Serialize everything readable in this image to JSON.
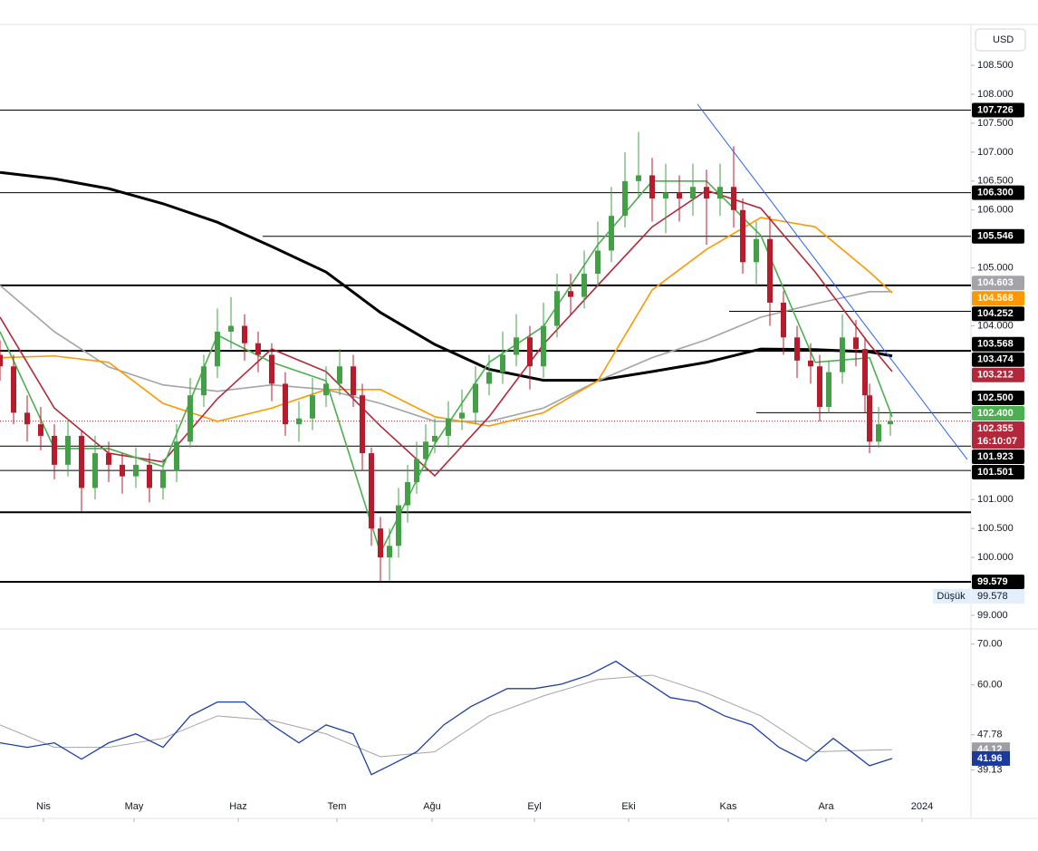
{
  "chart_data": {
    "type": "candlestick",
    "currency": "USD",
    "xlim": [
      0,
      214.4
    ],
    "xticks": [
      {
        "value": 9.6,
        "label": "Nis"
      },
      {
        "value": 29.6,
        "label": "May"
      },
      {
        "value": 52.6,
        "label": "Haz"
      },
      {
        "value": 74.4,
        "label": "Tem"
      },
      {
        "value": 95.4,
        "label": "Ağu"
      },
      {
        "value": 118,
        "label": "Eyl"
      },
      {
        "value": 138.8,
        "label": "Eki"
      },
      {
        "value": 160.8,
        "label": "Kas"
      },
      {
        "value": 182.4,
        "label": "Ara"
      },
      {
        "value": 203.6,
        "label": "2024"
      }
    ],
    "ylim": [
      98.78,
      109.19
    ],
    "yticks": [
      {
        "value": 108.5,
        "label": "108.500"
      },
      {
        "value": 108,
        "label": "108.000"
      },
      {
        "value": 107.5,
        "label": "107.500"
      },
      {
        "value": 107,
        "label": "107.000"
      },
      {
        "value": 106.5,
        "label": "106.500"
      },
      {
        "value": 106,
        "label": "106.000"
      },
      {
        "value": 105,
        "label": "105.000"
      },
      {
        "value": 104,
        "label": "104.000"
      },
      {
        "value": 101,
        "label": "101.000"
      },
      {
        "value": 100.5,
        "label": "100.500"
      },
      {
        "value": 100,
        "label": "100.000"
      },
      {
        "value": 99,
        "label": "99.000"
      }
    ],
    "up_color": "#43a047",
    "down_color": "#b71c2c",
    "candles": {
      "x": [
        0,
        3,
        6,
        9,
        12,
        15,
        18,
        21,
        24,
        27,
        30,
        33,
        36,
        39,
        42,
        45,
        48,
        51,
        54,
        57,
        60,
        63,
        66,
        69,
        72,
        75,
        78,
        80,
        82,
        84,
        86,
        88,
        90,
        92,
        94,
        96,
        99,
        102,
        105,
        108,
        111,
        114,
        117,
        120,
        123,
        126,
        129,
        132,
        135,
        138,
        141,
        144,
        147,
        150,
        153,
        156,
        159,
        162,
        164,
        167,
        170,
        173,
        176,
        179,
        181,
        183,
        186,
        189,
        191,
        192,
        194,
        196.6
      ],
      "open": [
        103.5,
        103.3,
        102.5,
        102.3,
        102.1,
        101.6,
        102.1,
        101.2,
        101.8,
        101.6,
        101.4,
        101.6,
        101.2,
        101.5,
        102.0,
        102.8,
        103.3,
        103.9,
        104.0,
        103.7,
        103.5,
        103.0,
        102.3,
        102.4,
        102.8,
        103.0,
        103.3,
        102.8,
        101.8,
        100.5,
        100.0,
        100.2,
        100.9,
        101.3,
        101.7,
        102.0,
        102.1,
        102.4,
        102.5,
        103.0,
        103.2,
        103.5,
        103.8,
        103.3,
        104.0,
        104.6,
        104.5,
        104.9,
        105.3,
        105.9,
        106.5,
        106.6,
        106.2,
        106.3,
        106.2,
        106.4,
        106.2,
        106.4,
        106.0,
        105.1,
        105.5,
        104.4,
        103.8,
        103.4,
        103.3,
        102.6,
        103.2,
        103.8,
        103.6,
        102.8,
        102.0,
        102.3
      ],
      "high": [
        103.75,
        103.5,
        102.8,
        102.6,
        102.3,
        102.4,
        102.2,
        102.1,
        102.0,
        101.8,
        101.9,
        101.8,
        101.7,
        102.3,
        103.1,
        103.5,
        104.3,
        104.5,
        104.2,
        103.9,
        103.7,
        103.2,
        102.7,
        103.1,
        103.3,
        103.6,
        103.5,
        103.0,
        101.9,
        100.7,
        100.5,
        101.2,
        101.6,
        102.0,
        102.3,
        102.4,
        102.7,
        102.9,
        103.3,
        103.5,
        103.9,
        104.2,
        104.0,
        104.4,
        104.9,
        104.9,
        105.3,
        105.8,
        106.4,
        107.0,
        107.35,
        106.9,
        106.8,
        106.6,
        106.8,
        106.7,
        106.8,
        107.1,
        106.2,
        105.8,
        105.9,
        104.6,
        104.0,
        103.7,
        103.5,
        103.4,
        104.2,
        104.1,
        103.8,
        103.0,
        102.6,
        102.5
      ],
      "low": [
        103.05,
        102.3,
        102.0,
        101.85,
        101.35,
        101.4,
        100.8,
        101.0,
        101.3,
        101.1,
        101.2,
        100.95,
        101.0,
        101.3,
        101.9,
        102.6,
        103.1,
        103.6,
        103.4,
        103.2,
        102.7,
        102.1,
        102.0,
        102.2,
        102.6,
        102.8,
        102.6,
        101.5,
        100.2,
        99.58,
        99.6,
        100.0,
        100.6,
        101.1,
        101.5,
        101.8,
        101.9,
        102.2,
        102.3,
        102.8,
        103.0,
        103.3,
        102.9,
        103.1,
        103.8,
        104.2,
        104.3,
        104.7,
        105.1,
        105.7,
        106.2,
        105.8,
        105.6,
        105.8,
        105.9,
        105.4,
        105.9,
        105.7,
        104.9,
        104.7,
        104.0,
        103.5,
        103.1,
        103.0,
        102.35,
        102.5,
        103.0,
        103.3,
        102.5,
        101.8,
        101.9,
        102.1
      ],
      "close": [
        103.3,
        102.5,
        102.3,
        102.1,
        101.6,
        102.1,
        101.2,
        101.8,
        101.6,
        101.4,
        101.6,
        101.2,
        101.5,
        102.0,
        102.8,
        103.3,
        103.9,
        104.0,
        103.7,
        103.5,
        103.0,
        102.3,
        102.4,
        102.8,
        103.0,
        103.3,
        102.8,
        101.8,
        100.5,
        100.0,
        100.2,
        100.9,
        101.3,
        101.7,
        102.0,
        102.1,
        102.4,
        102.5,
        103.0,
        103.2,
        103.5,
        103.8,
        103.3,
        104.0,
        104.6,
        104.5,
        104.9,
        105.3,
        105.9,
        106.5,
        106.6,
        106.2,
        106.3,
        106.2,
        106.4,
        106.2,
        106.4,
        106.0,
        105.1,
        105.5,
        104.4,
        103.8,
        103.4,
        103.3,
        102.6,
        103.2,
        103.8,
        103.6,
        102.8,
        102.0,
        102.3,
        102.355
      ]
    },
    "moving_averages": {
      "x": [
        0,
        12,
        24,
        36,
        48,
        60,
        72,
        84,
        96,
        108,
        120,
        132,
        144,
        156,
        168,
        180,
        192,
        197
      ],
      "series": [
        {
          "color": "#000000",
          "values": [
            106.65,
            106.54,
            106.37,
            106.11,
            105.79,
            105.37,
            104.93,
            104.23,
            103.68,
            103.25,
            103.06,
            103.06,
            103.21,
            103.37,
            103.6,
            103.59,
            103.55,
            103.48
          ]
        },
        {
          "color": "#a3a3a8",
          "values": [
            104.7,
            103.9,
            103.29,
            102.98,
            102.87,
            102.98,
            102.9,
            102.66,
            102.35,
            102.35,
            102.58,
            103.05,
            103.45,
            103.76,
            104.15,
            104.38,
            104.59,
            104.59
          ]
        },
        {
          "color": "#ff9800",
          "values": [
            103.45,
            103.48,
            103.37,
            102.66,
            102.35,
            102.58,
            102.9,
            102.9,
            102.43,
            102.27,
            102.5,
            103.05,
            104.62,
            105.32,
            105.87,
            105.71,
            104.93,
            104.57
          ]
        },
        {
          "color": "#b2283a",
          "values": [
            104.15,
            102.58,
            101.8,
            101.65,
            102.74,
            103.6,
            103.21,
            102.27,
            101.41,
            102.43,
            103.68,
            104.7,
            105.71,
            106.34,
            106.03,
            104.93,
            103.68,
            103.21
          ]
        },
        {
          "color": "#4caf50",
          "values": [
            103.9,
            101.88,
            101.88,
            101.57,
            103.84,
            103.37,
            103.05,
            100.08,
            101.96,
            103.37,
            103.99,
            105.4,
            106.5,
            106.5,
            105.56,
            103.37,
            103.45,
            102.43
          ]
        }
      ]
    },
    "levels": [
      {
        "value": 107.726,
        "from": 0
      },
      {
        "value": 106.3,
        "from": 0
      },
      {
        "value": 105.546,
        "from": 58
      },
      {
        "value": 104.7,
        "from": 0,
        "thick": true
      },
      {
        "value": 104.252,
        "from": 161
      },
      {
        "value": 103.568,
        "from": 0,
        "thick": true
      },
      {
        "value": 102.5,
        "from": 167
      },
      {
        "value": 101.923,
        "from": 0
      },
      {
        "value": 101.501,
        "from": 0
      },
      {
        "value": 100.78,
        "from": 0,
        "thick": true
      },
      {
        "value": 99.579,
        "from": 0,
        "thick": true
      }
    ],
    "trendline": {
      "x": [
        154,
        213.6
      ],
      "y": [
        107.83,
        101.69
      ],
      "color": "#2962ff"
    },
    "price_tags": [
      {
        "value": 107.726,
        "color": "#000000"
      },
      {
        "value": 106.3,
        "label": "106.300",
        "color": "#000000"
      },
      {
        "value": 105.546,
        "color": "#000000"
      },
      {
        "value": 104.603,
        "color": "#a3a3a8"
      },
      {
        "value": 104.568,
        "color": "#ff9800"
      },
      {
        "value": 104.252,
        "color": "#000000"
      },
      {
        "value": 103.568,
        "color": "#000000"
      },
      {
        "value": 103.474,
        "color": "#000000"
      },
      {
        "value": 103.212,
        "color": "#b2283a"
      },
      {
        "value": 102.5,
        "label": "102.500",
        "color": "#000000"
      },
      {
        "value": 102.4,
        "label": "102.400",
        "color": "#4caf50"
      },
      {
        "value": 101.923,
        "color": "#000000"
      },
      {
        "value": 101.501,
        "color": "#000000"
      },
      {
        "value": 99.579,
        "color": "#000000"
      }
    ],
    "current": {
      "value": 102.355,
      "countdown": "16:10:07",
      "color": "#b2283a"
    },
    "low": {
      "label": "Düşük",
      "value": 99.578
    },
    "rsi": {
      "ylim": [
        33.5,
        73.5
      ],
      "yticks": [
        {
          "value": 70,
          "label": "70.00"
        },
        {
          "value": 60,
          "label": "60.00"
        },
        47.78,
        39.13
      ],
      "series": [
        {
          "color": "#a3a3a8",
          "x": [
            0,
            12,
            24,
            36,
            48,
            60,
            72,
            84,
            96,
            108,
            120,
            132,
            144,
            156,
            168,
            180,
            192,
            197
          ],
          "values": [
            50.2,
            44.7,
            44.7,
            46.9,
            52.4,
            51.3,
            48,
            42.4,
            43.6,
            52.4,
            57.3,
            61.3,
            62.4,
            58,
            52.4,
            43.6,
            44,
            44.12
          ]
        },
        {
          "color": "#1e3fa8",
          "x": [
            0,
            6,
            12,
            18,
            24,
            30,
            36,
            42,
            48,
            54,
            60,
            66,
            72,
            78,
            82,
            86,
            92,
            98,
            104,
            112,
            118,
            124,
            130,
            136,
            142,
            148,
            154,
            160,
            166,
            172,
            178,
            184,
            188,
            192,
            197
          ],
          "values": [
            45.8,
            44.7,
            45.8,
            41.8,
            45.8,
            48,
            44.7,
            52.4,
            55.8,
            55.8,
            50.2,
            45.8,
            50.2,
            48,
            38,
            40.2,
            43.6,
            50.2,
            54.7,
            59.1,
            59.1,
            60.2,
            62.4,
            65.8,
            61.3,
            56.9,
            55.8,
            52.4,
            50.2,
            44.7,
            41.3,
            46.9,
            43.6,
            40.2,
            41.96
          ]
        }
      ],
      "tags": [
        {
          "value": 44.12,
          "color": "#9e9ea4"
        },
        {
          "value": 41.96,
          "color": "#1a3a9c"
        }
      ]
    }
  }
}
